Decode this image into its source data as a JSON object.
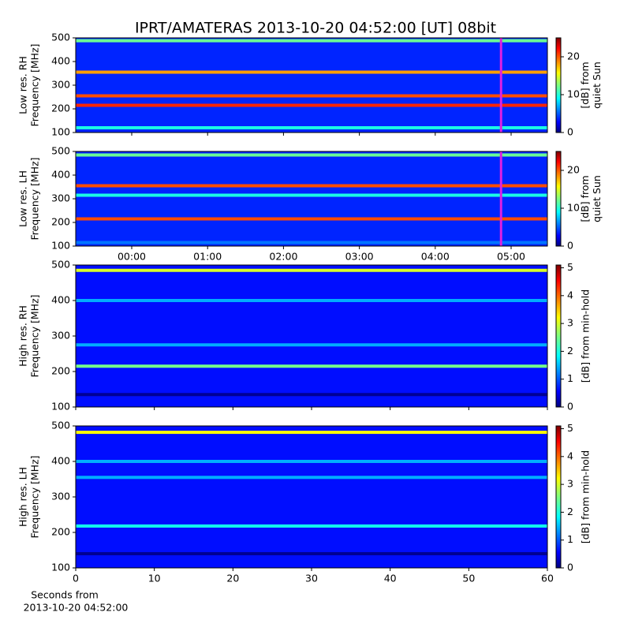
{
  "title": "IPRT/AMATERAS 2013-10-20 04:52:00 [UT]   08bit",
  "chart_data": [
    {
      "type": "heatmap",
      "y_label": [
        "Low res. RH",
        "Frequency [MHz]"
      ],
      "ylim": [
        100,
        500
      ],
      "yticks": [
        100,
        200,
        300,
        400,
        500
      ],
      "xlim": [
        -0.738,
        5.478
      ],
      "xticks": [
        {
          "value": 0,
          "label": "00:00"
        },
        {
          "value": 1,
          "label": "01:00"
        },
        {
          "value": 2,
          "label": "02:00"
        },
        {
          "value": 3,
          "label": "03:00"
        },
        {
          "value": 4,
          "label": "04:00"
        },
        {
          "value": 5,
          "label": "05:00"
        }
      ],
      "show_xtick_labels": false,
      "marker_time": 4.867,
      "marker_color": "#e020e0",
      "background_level": 4,
      "bands": [
        {
          "freq": 488,
          "level": 12
        },
        {
          "freq": 355,
          "level": 18
        },
        {
          "freq": 255,
          "level": 20
        },
        {
          "freq": 215,
          "level": 21
        },
        {
          "freq": 120,
          "level": 10
        }
      ],
      "colorbar": {
        "label": [
          "[dB] from",
          "quiet Sun"
        ],
        "lim": [
          0,
          25
        ],
        "ticks": [
          0,
          10,
          20
        ]
      }
    },
    {
      "type": "heatmap",
      "y_label": [
        "Low res. LH",
        "Frequency [MHz]"
      ],
      "ylim": [
        100,
        500
      ],
      "yticks": [
        100,
        200,
        300,
        400,
        500
      ],
      "xlim": [
        -0.738,
        5.478
      ],
      "xticks": [
        {
          "value": 0,
          "label": "00:00"
        },
        {
          "value": 1,
          "label": "01:00"
        },
        {
          "value": 2,
          "label": "02:00"
        },
        {
          "value": 3,
          "label": "03:00"
        },
        {
          "value": 4,
          "label": "04:00"
        },
        {
          "value": 5,
          "label": "05:00"
        }
      ],
      "show_xtick_labels": true,
      "marker_time": 4.867,
      "marker_color": "#e020e0",
      "background_level": 4,
      "bands": [
        {
          "freq": 485,
          "level": 12
        },
        {
          "freq": 355,
          "level": 20
        },
        {
          "freq": 315,
          "level": 10
        },
        {
          "freq": 215,
          "level": 20
        },
        {
          "freq": 115,
          "level": 6
        }
      ],
      "colorbar": {
        "label": [
          "[dB] from",
          "quiet Sun"
        ],
        "lim": [
          0,
          25
        ],
        "ticks": [
          0,
          10,
          20
        ]
      }
    },
    {
      "type": "heatmap",
      "y_label": [
        "High res. RH",
        "Frequency [MHz]"
      ],
      "ylim": [
        100,
        500
      ],
      "yticks": [
        100,
        200,
        300,
        400,
        500
      ],
      "xlim": [
        0,
        60
      ],
      "xticks": [
        0,
        10,
        20,
        30,
        40,
        50,
        60
      ],
      "show_xtick_labels": false,
      "background_level": 0.7,
      "bands": [
        {
          "freq": 485,
          "level": 3
        },
        {
          "freq": 400,
          "level": 1.5
        },
        {
          "freq": 275,
          "level": 1.5
        },
        {
          "freq": 215,
          "level": 2.5
        },
        {
          "freq": 135,
          "level": 0.1
        }
      ],
      "colorbar": {
        "label": [
          "[dB] from min-hold"
        ],
        "lim": [
          0,
          5.1
        ],
        "ticks": [
          0,
          1,
          2,
          3,
          4,
          5
        ]
      }
    },
    {
      "type": "heatmap",
      "y_label": [
        "High res. LH",
        "Frequency [MHz]"
      ],
      "ylim": [
        100,
        500
      ],
      "yticks": [
        100,
        200,
        300,
        400,
        500
      ],
      "xlim": [
        0,
        60
      ],
      "xticks": [
        0,
        10,
        20,
        30,
        40,
        50,
        60
      ],
      "show_xtick_labels": true,
      "xlabel": [
        "Seconds from",
        "2013-10-20 04:52:00"
      ],
      "background_level": 0.7,
      "bands": [
        {
          "freq": 482,
          "level": 3.2
        },
        {
          "freq": 400,
          "level": 1.5
        },
        {
          "freq": 355,
          "level": 1.5
        },
        {
          "freq": 218,
          "level": 2
        },
        {
          "freq": 140,
          "level": 0.1
        }
      ],
      "colorbar": {
        "label": [
          "[dB] from min-hold"
        ],
        "lim": [
          0,
          5.1
        ],
        "ticks": [
          0,
          1,
          2,
          3,
          4,
          5
        ]
      }
    }
  ]
}
